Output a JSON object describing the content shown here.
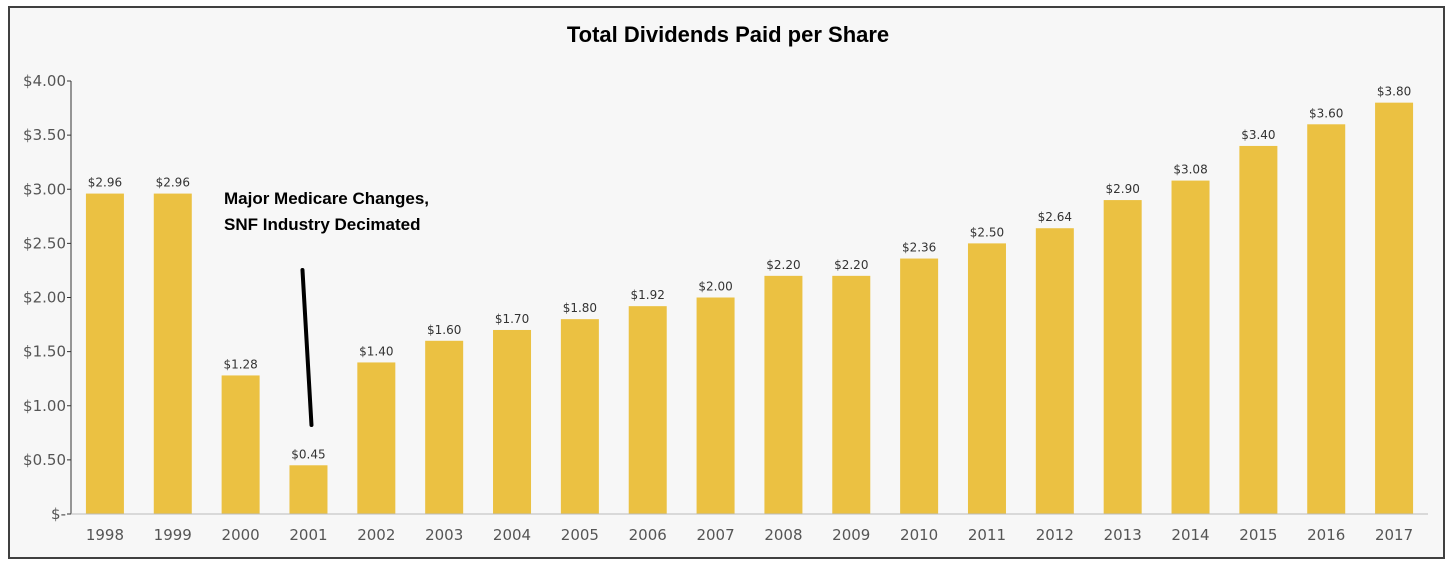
{
  "chart_data": {
    "type": "bar",
    "title": "Total Dividends Paid per Share",
    "xlabel": "",
    "ylabel": "",
    "ylim": [
      0,
      4
    ],
    "grid": false,
    "bar_color": "#ebc142",
    "categories": [
      "1998",
      "1999",
      "2000",
      "2001",
      "2002",
      "2003",
      "2004",
      "2005",
      "2006",
      "2007",
      "2008",
      "2009",
      "2010",
      "2011",
      "2012",
      "2013",
      "2014",
      "2015",
      "2016",
      "2017"
    ],
    "values": [
      2.96,
      2.96,
      1.28,
      0.45,
      1.4,
      1.6,
      1.7,
      1.8,
      1.92,
      2.0,
      2.2,
      2.2,
      2.36,
      2.5,
      2.64,
      2.9,
      3.08,
      3.4,
      3.6,
      3.8
    ],
    "data_labels": [
      "$2.96",
      "$2.96",
      "$1.28",
      "$0.45",
      "$1.40",
      "$1.60",
      "$1.70",
      "$1.80",
      "$1.92",
      "$2.00",
      "$2.20",
      "$2.20",
      "$2.36",
      "$2.50",
      "$2.64",
      "$2.90",
      "$3.08",
      "$3.40",
      "$3.60",
      "$3.80"
    ],
    "y_ticks": [
      {
        "value": 4.0,
        "label": "$4.00"
      },
      {
        "value": 3.5,
        "label": "$3.50"
      },
      {
        "value": 3.0,
        "label": "$3.00"
      },
      {
        "value": 2.5,
        "label": "$2.50"
      },
      {
        "value": 2.0,
        "label": "$2.00"
      },
      {
        "value": 1.5,
        "label": "$1.50"
      },
      {
        "value": 1.0,
        "label": "$1.00"
      },
      {
        "value": 0.5,
        "label": "$0.50"
      },
      {
        "value": 0.0,
        "label": "$-"
      }
    ],
    "annotation": {
      "lines": [
        "Major Medicare Changes,",
        "SNF Industry Decimated"
      ],
      "points_to": "2001"
    }
  }
}
